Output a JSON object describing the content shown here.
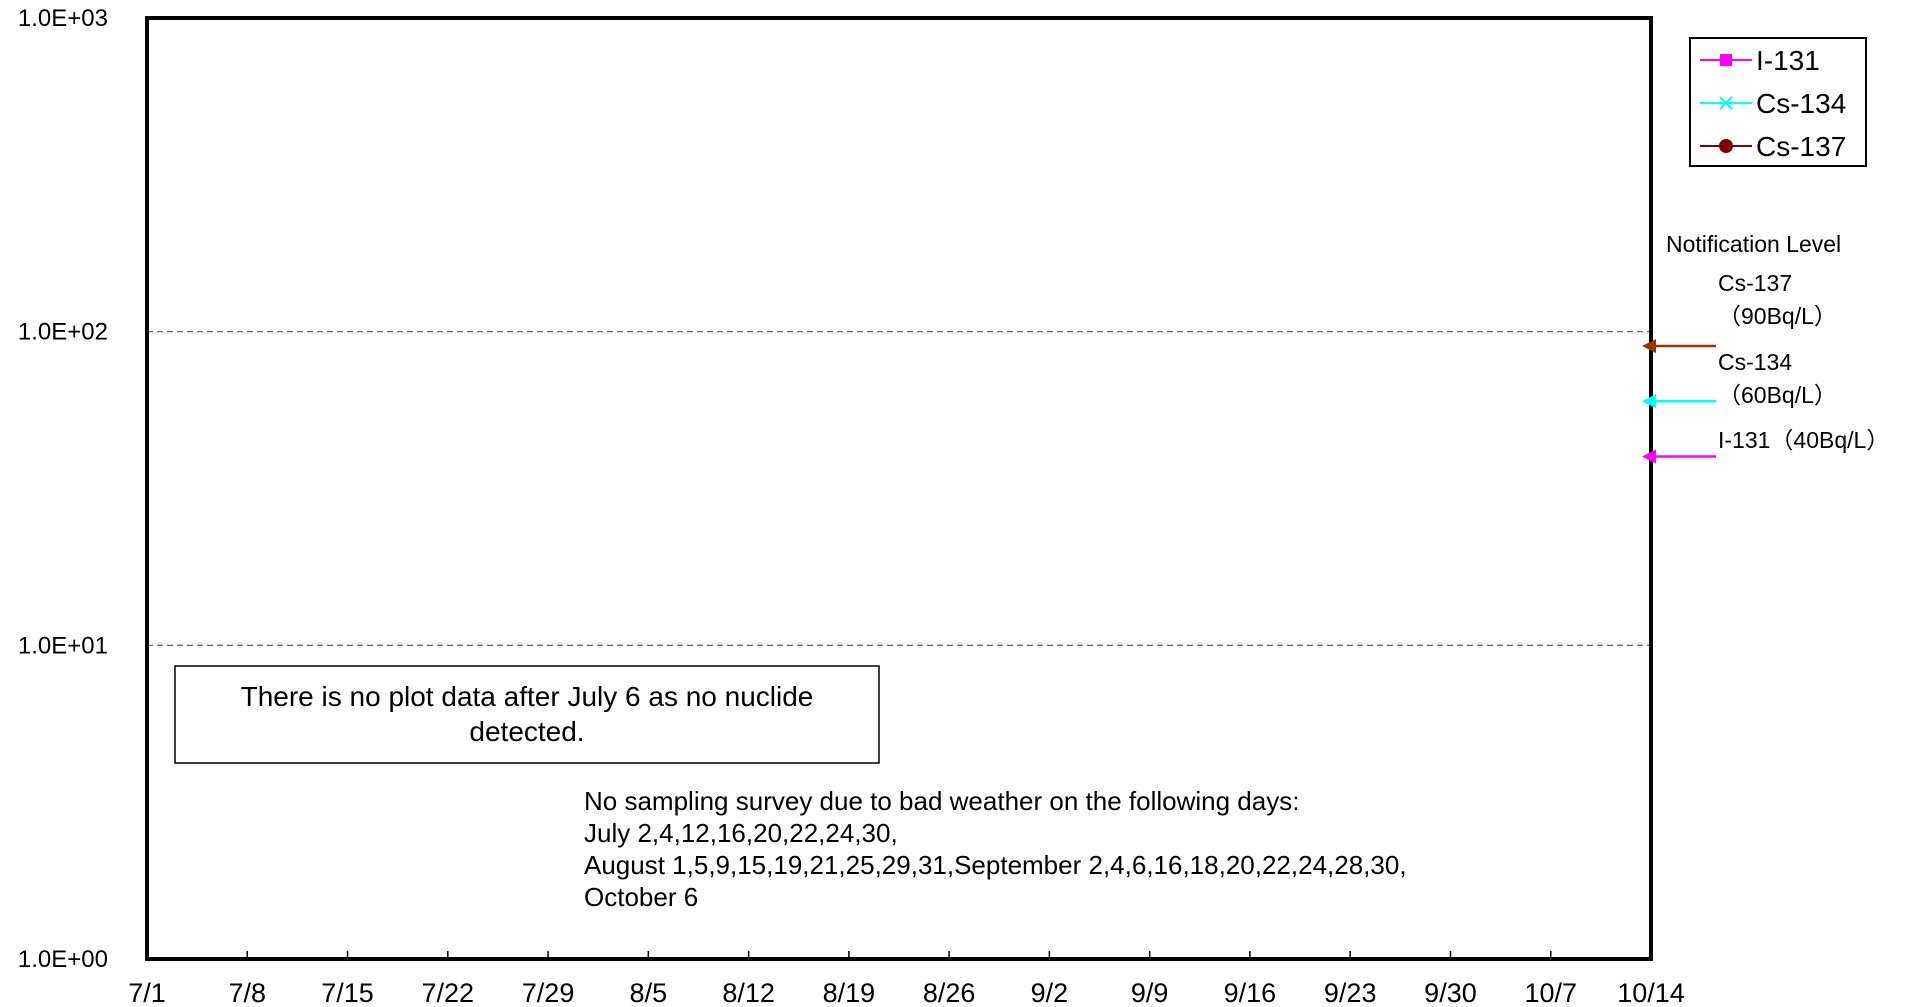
{
  "chart_data": {
    "type": "line",
    "y_scale": "log",
    "ylim": [
      1,
      1000
    ],
    "y_ticks": [
      1,
      10,
      100,
      1000
    ],
    "y_tick_labels": [
      "1.0E+00",
      "1.0E+01",
      "1.0E+02",
      "1.0E+03"
    ],
    "y_gridlines": [
      10,
      100
    ],
    "grid": "dashed horizontal at 1.0E+01 and 1.0E+02",
    "xlim": [
      "7/1",
      "10/14"
    ],
    "x_tick_labels": [
      "7/1",
      "7/8",
      "7/15",
      "7/22",
      "7/29",
      "8/5",
      "8/12",
      "8/19",
      "8/26",
      "9/2",
      "9/9",
      "9/16",
      "9/23",
      "9/30",
      "10/7",
      "10/14"
    ],
    "series": [
      {
        "name": "I-131",
        "color": "#ff00ff",
        "marker": "square",
        "values": []
      },
      {
        "name": "Cs-134",
        "color": "#00ffff",
        "marker": "x",
        "values": []
      },
      {
        "name": "Cs-137",
        "color": "#800000",
        "marker": "circle",
        "values": []
      }
    ],
    "legend_position": "top-right",
    "notification_level": {
      "title": "Notification Level",
      "levels": [
        {
          "line1": "Cs-137",
          "line2": "（90Bq/L）",
          "value": 90,
          "color": "#993300"
        },
        {
          "line1": "Cs-134",
          "line2": "（60Bq/L）",
          "value": 60,
          "color": "#00ffff"
        },
        {
          "line1": "I-131（40Bq/L）",
          "line2": "",
          "value": 40,
          "color": "#ff00ff"
        }
      ]
    },
    "annotations": {
      "no_data_box": [
        "There is no plot data after July 6 as no nuclide",
        "detected."
      ],
      "no_sampling_note": [
        "No sampling survey due to bad weather on the following days:",
        "July 2,4,12,16,20,22,24,30,",
        "August 1,5,9,15,19,21,25,29,31,September 2,4,6,16,18,20,22,24,28,30,",
        "October 6"
      ]
    }
  }
}
